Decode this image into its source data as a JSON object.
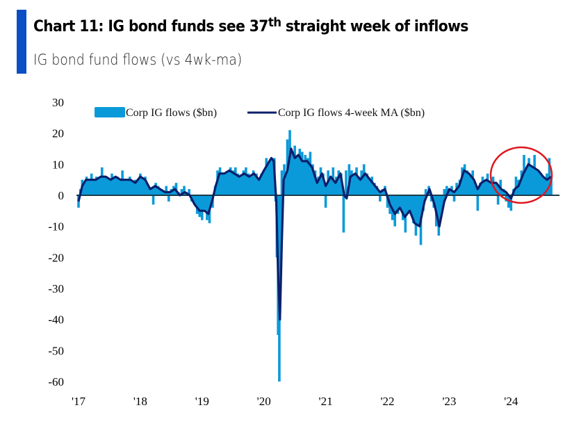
{
  "header": {
    "title_main": "Chart 11: IG bond funds see 37",
    "title_sup": "th",
    "title_rest": " straight week of inflows",
    "subtitle": "IG bond fund flows (vs 4wk-ma)"
  },
  "colors": {
    "accent": "#0a4fc4",
    "flows": "#0b9ad9",
    "ma": "#0b1f6b",
    "zero_line": "#1a3b4a",
    "highlight": "#e0161e"
  },
  "chart_data": {
    "type": "bar",
    "title": "IG bond fund flows (vs 4wk-ma)",
    "xlabel": "",
    "ylabel": "",
    "ylim": [
      -60,
      30
    ],
    "yticks": [
      30,
      20,
      10,
      0,
      -10,
      -20,
      -30,
      -40,
      -50,
      -60
    ],
    "ytick_labels": [
      "30",
      "20",
      "10",
      "0",
      "-10",
      "-20",
      "-30",
      "-40",
      "-50",
      "-60"
    ],
    "xlim": [
      2017.0,
      2024.75
    ],
    "xticks": [
      2017,
      2018,
      2019,
      2020,
      2021,
      2022,
      2023,
      2024
    ],
    "xtick_labels": [
      "'17",
      "'18",
      "'19",
      "'20",
      "'21",
      "'22",
      "'23",
      "'24"
    ],
    "grid": false,
    "legend_position": "top",
    "legend": [
      "Corp IG flows ($bn)",
      "Corp IG flows 4-week MA ($bn)"
    ],
    "annotation": "red circle highlighting 2024 inflow streak",
    "series": [
      {
        "name": "Corp IG flows ($bn)",
        "kind": "bar",
        "points": [
          [
            2017.0,
            -4
          ],
          [
            2017.03,
            2
          ],
          [
            2017.06,
            5
          ],
          [
            2017.1,
            4
          ],
          [
            2017.13,
            6
          ],
          [
            2017.17,
            3
          ],
          [
            2017.21,
            7
          ],
          [
            2017.25,
            5
          ],
          [
            2017.29,
            6
          ],
          [
            2017.33,
            4
          ],
          [
            2017.38,
            9
          ],
          [
            2017.42,
            5
          ],
          [
            2017.46,
            6
          ],
          [
            2017.5,
            4
          ],
          [
            2017.54,
            7
          ],
          [
            2017.58,
            5
          ],
          [
            2017.63,
            6
          ],
          [
            2017.67,
            4
          ],
          [
            2017.71,
            8
          ],
          [
            2017.75,
            5
          ],
          [
            2017.79,
            4
          ],
          [
            2017.83,
            6
          ],
          [
            2017.88,
            3
          ],
          [
            2017.92,
            5
          ],
          [
            2017.96,
            4
          ],
          [
            2018.0,
            7
          ],
          [
            2018.04,
            5
          ],
          [
            2018.08,
            6
          ],
          [
            2018.12,
            3
          ],
          [
            2018.17,
            2
          ],
          [
            2018.21,
            -3
          ],
          [
            2018.25,
            4
          ],
          [
            2018.29,
            3
          ],
          [
            2018.33,
            2
          ],
          [
            2018.38,
            0
          ],
          [
            2018.42,
            3
          ],
          [
            2018.46,
            -2
          ],
          [
            2018.5,
            2
          ],
          [
            2018.54,
            3
          ],
          [
            2018.58,
            4
          ],
          [
            2018.62,
            1
          ],
          [
            2018.67,
            2
          ],
          [
            2018.71,
            3
          ],
          [
            2018.75,
            1
          ],
          [
            2018.79,
            2
          ],
          [
            2018.83,
            -2
          ],
          [
            2018.88,
            -3
          ],
          [
            2018.92,
            -6
          ],
          [
            2018.96,
            -7
          ],
          [
            2019.0,
            -8
          ],
          [
            2019.04,
            -5
          ],
          [
            2019.08,
            -8
          ],
          [
            2019.12,
            -9
          ],
          [
            2019.17,
            -4
          ],
          [
            2019.21,
            3
          ],
          [
            2019.25,
            8
          ],
          [
            2019.29,
            9
          ],
          [
            2019.33,
            7
          ],
          [
            2019.38,
            6
          ],
          [
            2019.42,
            7
          ],
          [
            2019.46,
            9
          ],
          [
            2019.5,
            8
          ],
          [
            2019.54,
            9
          ],
          [
            2019.58,
            7
          ],
          [
            2019.62,
            6
          ],
          [
            2019.67,
            8
          ],
          [
            2019.71,
            9
          ],
          [
            2019.75,
            7
          ],
          [
            2019.79,
            6
          ],
          [
            2019.83,
            8
          ],
          [
            2019.88,
            7
          ],
          [
            2019.92,
            5
          ],
          [
            2019.96,
            7
          ],
          [
            2020.0,
            8
          ],
          [
            2020.04,
            12
          ],
          [
            2020.08,
            10
          ],
          [
            2020.12,
            11
          ],
          [
            2020.17,
            12
          ],
          [
            2020.19,
            -2
          ],
          [
            2020.21,
            -20
          ],
          [
            2020.23,
            -45
          ],
          [
            2020.25,
            -60
          ],
          [
            2020.27,
            -30
          ],
          [
            2020.29,
            8
          ],
          [
            2020.33,
            10
          ],
          [
            2020.38,
            18
          ],
          [
            2020.42,
            21
          ],
          [
            2020.46,
            14
          ],
          [
            2020.5,
            16
          ],
          [
            2020.54,
            12
          ],
          [
            2020.58,
            15
          ],
          [
            2020.62,
            14
          ],
          [
            2020.67,
            13
          ],
          [
            2020.71,
            12
          ],
          [
            2020.75,
            14
          ],
          [
            2020.79,
            10
          ],
          [
            2020.83,
            8
          ],
          [
            2020.88,
            6
          ],
          [
            2020.92,
            9
          ],
          [
            2020.96,
            7
          ],
          [
            2021.0,
            -4
          ],
          [
            2021.04,
            8
          ],
          [
            2021.08,
            5
          ],
          [
            2021.12,
            9
          ],
          [
            2021.17,
            6
          ],
          [
            2021.21,
            8
          ],
          [
            2021.25,
            7
          ],
          [
            2021.29,
            -12
          ],
          [
            2021.33,
            8
          ],
          [
            2021.38,
            10
          ],
          [
            2021.42,
            8
          ],
          [
            2021.46,
            7
          ],
          [
            2021.5,
            9
          ],
          [
            2021.54,
            6
          ],
          [
            2021.58,
            8
          ],
          [
            2021.62,
            10
          ],
          [
            2021.67,
            7
          ],
          [
            2021.71,
            5
          ],
          [
            2021.75,
            6
          ],
          [
            2021.79,
            4
          ],
          [
            2021.83,
            3
          ],
          [
            2021.88,
            -2
          ],
          [
            2021.92,
            2
          ],
          [
            2021.96,
            3
          ],
          [
            2022.0,
            -4
          ],
          [
            2022.04,
            -6
          ],
          [
            2022.08,
            -8
          ],
          [
            2022.12,
            -10
          ],
          [
            2022.17,
            -6
          ],
          [
            2022.21,
            -3
          ],
          [
            2022.25,
            -8
          ],
          [
            2022.29,
            -12
          ],
          [
            2022.33,
            -6
          ],
          [
            2022.38,
            -4
          ],
          [
            2022.42,
            -9
          ],
          [
            2022.46,
            -13
          ],
          [
            2022.5,
            -8
          ],
          [
            2022.54,
            -16
          ],
          [
            2022.58,
            -5
          ],
          [
            2022.62,
            2
          ],
          [
            2022.67,
            3
          ],
          [
            2022.71,
            -2
          ],
          [
            2022.75,
            -4
          ],
          [
            2022.79,
            -10
          ],
          [
            2022.83,
            -13
          ],
          [
            2022.88,
            -4
          ],
          [
            2022.92,
            2
          ],
          [
            2022.96,
            3
          ],
          [
            2023.0,
            2
          ],
          [
            2023.04,
            3
          ],
          [
            2023.08,
            -2
          ],
          [
            2023.12,
            4
          ],
          [
            2023.17,
            5
          ],
          [
            2023.21,
            9
          ],
          [
            2023.25,
            10
          ],
          [
            2023.29,
            8
          ],
          [
            2023.33,
            4
          ],
          [
            2023.38,
            8
          ],
          [
            2023.42,
            2
          ],
          [
            2023.46,
            -5
          ],
          [
            2023.5,
            4
          ],
          [
            2023.54,
            6
          ],
          [
            2023.58,
            5
          ],
          [
            2023.62,
            7
          ],
          [
            2023.67,
            3
          ],
          [
            2023.71,
            6
          ],
          [
            2023.75,
            4
          ],
          [
            2023.79,
            -3
          ],
          [
            2023.83,
            5
          ],
          [
            2023.88,
            2
          ],
          [
            2023.92,
            -2
          ],
          [
            2023.96,
            -4
          ],
          [
            2024.0,
            -5
          ],
          [
            2024.04,
            2
          ],
          [
            2024.08,
            6
          ],
          [
            2024.12,
            5
          ],
          [
            2024.17,
            8
          ],
          [
            2024.21,
            13
          ],
          [
            2024.25,
            9
          ],
          [
            2024.29,
            12
          ],
          [
            2024.33,
            9
          ],
          [
            2024.38,
            13
          ],
          [
            2024.42,
            8
          ],
          [
            2024.46,
            7
          ],
          [
            2024.5,
            6
          ],
          [
            2024.54,
            5
          ],
          [
            2024.58,
            7
          ],
          [
            2024.62,
            12
          ],
          [
            2024.65,
            6
          ]
        ]
      },
      {
        "name": "Corp IG flows 4-week MA ($bn)",
        "kind": "line",
        "points": [
          [
            2017.0,
            -2
          ],
          [
            2017.06,
            3
          ],
          [
            2017.12,
            5
          ],
          [
            2017.2,
            5
          ],
          [
            2017.28,
            5
          ],
          [
            2017.36,
            6
          ],
          [
            2017.44,
            6
          ],
          [
            2017.52,
            5
          ],
          [
            2017.6,
            6
          ],
          [
            2017.68,
            5
          ],
          [
            2017.76,
            5
          ],
          [
            2017.84,
            5
          ],
          [
            2017.92,
            4
          ],
          [
            2018.0,
            6
          ],
          [
            2018.08,
            5
          ],
          [
            2018.16,
            2
          ],
          [
            2018.24,
            3
          ],
          [
            2018.32,
            2
          ],
          [
            2018.4,
            1
          ],
          [
            2018.48,
            1
          ],
          [
            2018.56,
            2
          ],
          [
            2018.64,
            0
          ],
          [
            2018.72,
            1
          ],
          [
            2018.8,
            0
          ],
          [
            2018.88,
            -3
          ],
          [
            2018.96,
            -5
          ],
          [
            2019.04,
            -5
          ],
          [
            2019.1,
            -6
          ],
          [
            2019.16,
            -2
          ],
          [
            2019.22,
            3
          ],
          [
            2019.28,
            7
          ],
          [
            2019.36,
            7
          ],
          [
            2019.44,
            8
          ],
          [
            2019.52,
            7
          ],
          [
            2019.6,
            6
          ],
          [
            2019.68,
            7
          ],
          [
            2019.76,
            6
          ],
          [
            2019.84,
            7
          ],
          [
            2019.92,
            5
          ],
          [
            2020.0,
            8
          ],
          [
            2020.06,
            10
          ],
          [
            2020.12,
            12
          ],
          [
            2020.16,
            11
          ],
          [
            2020.2,
            -2
          ],
          [
            2020.23,
            -25
          ],
          [
            2020.26,
            -40
          ],
          [
            2020.29,
            -15
          ],
          [
            2020.32,
            5
          ],
          [
            2020.38,
            8
          ],
          [
            2020.44,
            15
          ],
          [
            2020.5,
            12
          ],
          [
            2020.56,
            13
          ],
          [
            2020.62,
            11
          ],
          [
            2020.7,
            11
          ],
          [
            2020.78,
            9
          ],
          [
            2020.86,
            4
          ],
          [
            2020.94,
            7
          ],
          [
            2021.0,
            3
          ],
          [
            2021.08,
            6
          ],
          [
            2021.16,
            4
          ],
          [
            2021.24,
            7
          ],
          [
            2021.3,
            0
          ],
          [
            2021.34,
            -1
          ],
          [
            2021.4,
            6
          ],
          [
            2021.48,
            7
          ],
          [
            2021.56,
            5
          ],
          [
            2021.64,
            7
          ],
          [
            2021.72,
            5
          ],
          [
            2021.8,
            3
          ],
          [
            2021.88,
            1
          ],
          [
            2021.96,
            2
          ],
          [
            2022.04,
            -3
          ],
          [
            2022.12,
            -6
          ],
          [
            2022.2,
            -4
          ],
          [
            2022.28,
            -7
          ],
          [
            2022.36,
            -5
          ],
          [
            2022.44,
            -9
          ],
          [
            2022.52,
            -10
          ],
          [
            2022.6,
            -2
          ],
          [
            2022.68,
            2
          ],
          [
            2022.76,
            -3
          ],
          [
            2022.84,
            -10
          ],
          [
            2022.92,
            -2
          ],
          [
            2023.0,
            2
          ],
          [
            2023.08,
            1
          ],
          [
            2023.16,
            3
          ],
          [
            2023.24,
            8
          ],
          [
            2023.32,
            7
          ],
          [
            2023.4,
            5
          ],
          [
            2023.46,
            2
          ],
          [
            2023.52,
            4
          ],
          [
            2023.6,
            5
          ],
          [
            2023.68,
            4
          ],
          [
            2023.76,
            4
          ],
          [
            2023.84,
            2
          ],
          [
            2023.92,
            1
          ],
          [
            2024.0,
            -1
          ],
          [
            2024.06,
            2
          ],
          [
            2024.12,
            3
          ],
          [
            2024.2,
            7
          ],
          [
            2024.28,
            10
          ],
          [
            2024.36,
            9
          ],
          [
            2024.44,
            8
          ],
          [
            2024.52,
            6
          ],
          [
            2024.58,
            5
          ],
          [
            2024.65,
            6
          ]
        ]
      }
    ]
  }
}
